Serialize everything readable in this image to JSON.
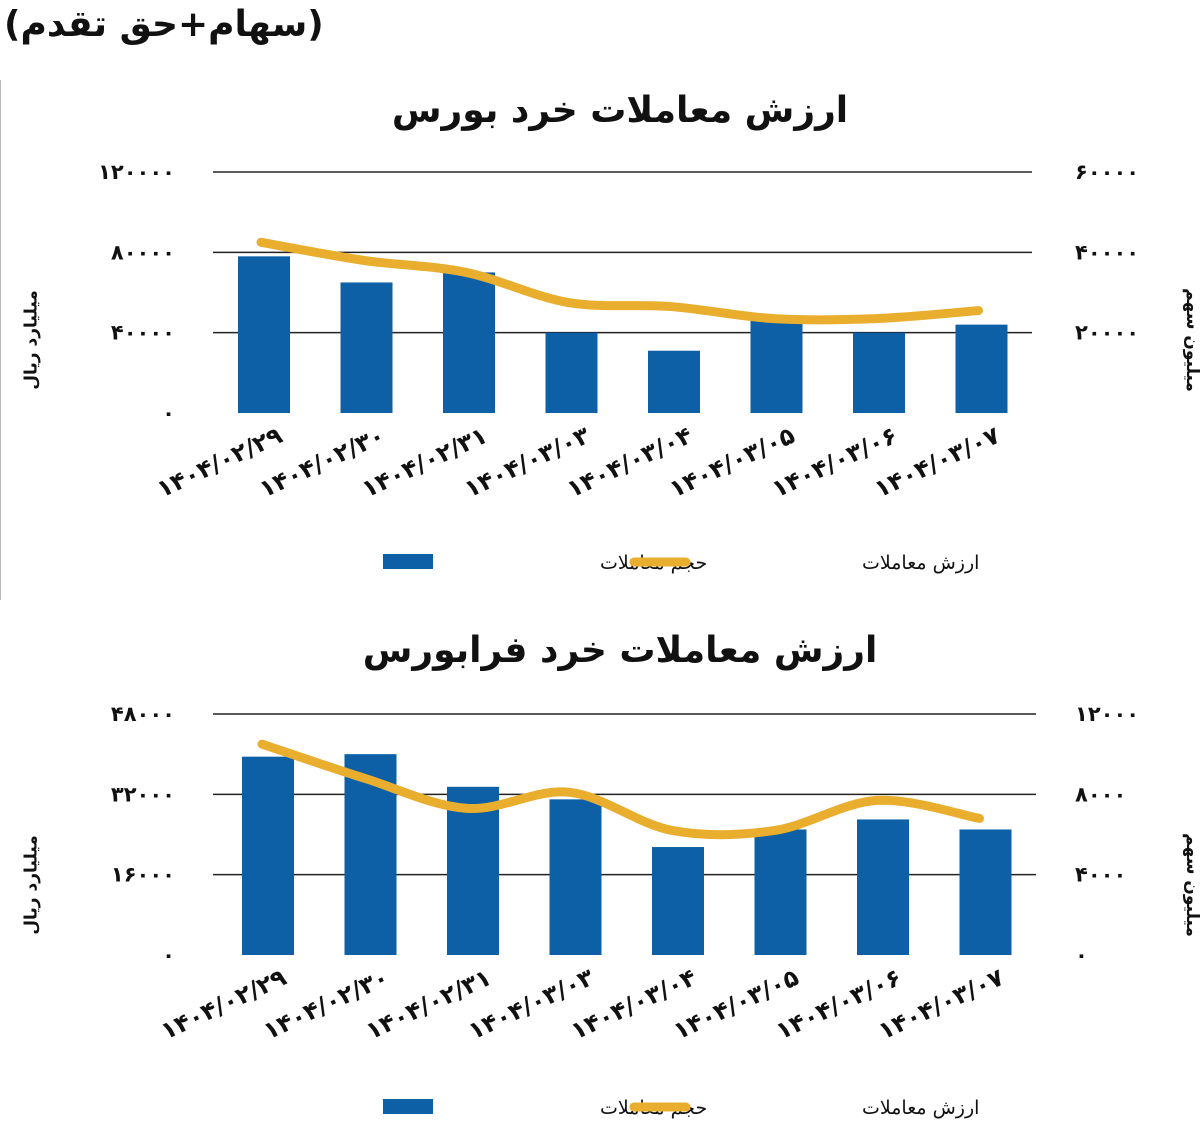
{
  "header": {
    "label": "(سهام+حق تقدم)"
  },
  "colors": {
    "bar": "#0D5FA6",
    "line": "#E9AE2E",
    "grid": "#222222",
    "text": "#111111",
    "watermark": "#ebebeb"
  },
  "chart_data": [
    {
      "type": "bar",
      "title": "ارزش معاملات خرد بورس",
      "categories": [
        "1404/02/29",
        "1404/02/30",
        "1404/02/31",
        "1404/03/03",
        "1404/03/04",
        "1404/03/05",
        "1404/03/06",
        "1404/03/07"
      ],
      "category_labels": [
        "۱۴۰۴/۰۲/۲۹",
        "۱۴۰۴/۰۲/۳۰",
        "۱۴۰۴/۰۲/۳۱",
        "۱۴۰۴/۰۳/۰۳",
        "۱۴۰۴/۰۳/۰۴",
        "۱۴۰۴/۰۳/۰۵",
        "۱۴۰۴/۰۳/۰۶",
        "۱۴۰۴/۰۳/۰۷"
      ],
      "series": [
        {
          "name": "حجم معاملات",
          "type": "bar",
          "axis": "right",
          "values": [
            39000,
            32500,
            35000,
            20000,
            15500,
            23000,
            20000,
            22000
          ]
        },
        {
          "name": "ارزش معاملات",
          "type": "line",
          "axis": "left",
          "values": [
            85000,
            76000,
            70000,
            55000,
            53000,
            47000,
            47000,
            51000
          ]
        }
      ],
      "left_axis": {
        "label": "میلیارد ریال",
        "range": [
          0,
          120000
        ],
        "ticks": [
          0,
          40000,
          80000,
          120000
        ],
        "tick_labels": [
          "۰",
          "۴۰۰۰۰",
          "۸۰۰۰۰",
          "۱۲۰۰۰۰"
        ]
      },
      "right_axis": {
        "label": "میلیون سهم",
        "range": [
          0,
          60000
        ],
        "ticks": [
          20000,
          40000,
          60000
        ],
        "tick_labels": [
          "۲۰۰۰۰",
          "۴۰۰۰۰",
          "۶۰۰۰۰"
        ]
      },
      "legend": {
        "position": "bottom",
        "bar_label": "حجم معاملات",
        "line_label": "ارزش معاملات"
      },
      "grid": true
    },
    {
      "type": "bar",
      "title": "ارزش معاملات خرد فرابورس",
      "categories": [
        "1404/02/29",
        "1404/02/30",
        "1404/02/31",
        "1404/03/03",
        "1404/03/04",
        "1404/03/05",
        "1404/03/06",
        "1404/03/07"
      ],
      "category_labels": [
        "۱۴۰۴/۰۲/۲۹",
        "۱۴۰۴/۰۲/۳۰",
        "۱۴۰۴/۰۲/۳۱",
        "۱۴۰۴/۰۳/۰۳",
        "۱۴۰۴/۰۳/۰۴",
        "۱۴۰۴/۰۳/۰۵",
        "۱۴۰۴/۰۳/۰۶",
        "۱۴۰۴/۰۳/۰۷"
      ],
      "series": [
        {
          "name": "حجم معاملات",
          "type": "bar",
          "axis": "left",
          "values": [
            39500,
            40000,
            33500,
            31000,
            21500,
            25000,
            27000,
            25000
          ]
        },
        {
          "name": "ارزش معاملات",
          "type": "line",
          "axis": "right",
          "values": [
            10500,
            8800,
            7300,
            8100,
            6200,
            6200,
            7700,
            6800
          ]
        }
      ],
      "left_axis": {
        "label": "میلیارد ریال",
        "range": [
          0,
          48000
        ],
        "ticks": [
          0,
          16000,
          32000,
          48000
        ],
        "tick_labels": [
          "۰",
          "۱۶۰۰۰",
          "۳۲۰۰۰",
          "۴۸۰۰۰"
        ]
      },
      "right_axis": {
        "label": "میلیون سهم",
        "range": [
          0,
          12000
        ],
        "ticks": [
          0,
          4000,
          8000,
          12000
        ],
        "tick_labels": [
          "۰",
          "۴۰۰۰",
          "۸۰۰۰",
          "۱۲۰۰۰"
        ]
      },
      "legend": {
        "position": "bottom",
        "bar_label": "حجم معاملات",
        "line_label": "ارزش معاملات"
      },
      "grid": true
    }
  ]
}
